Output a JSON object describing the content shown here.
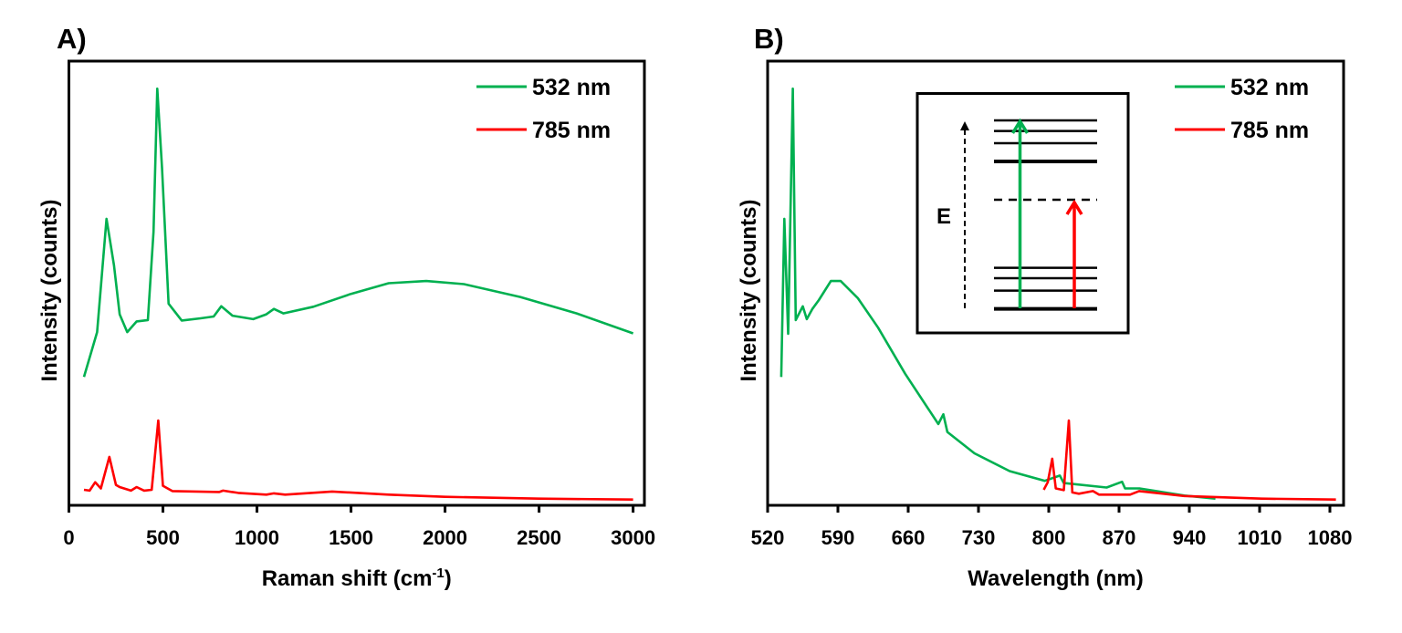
{
  "colors": {
    "green": "#00b050",
    "red": "#ff0000",
    "axis": "#000000"
  },
  "chart_data": [
    {
      "panel_label": "A)",
      "type": "line",
      "xlabel": "Raman shift (cm",
      "xlabel_sup": "-1",
      "xlabel_end": ")",
      "ylabel": "Intensity (counts)",
      "xlim": [
        0,
        3000
      ],
      "ylim": [
        0,
        100
      ],
      "xticks": [
        0,
        500,
        1000,
        1500,
        2000,
        2500,
        3000
      ],
      "grid": false,
      "legend": "top-right",
      "series": [
        {
          "name": "532 nm",
          "color": "#00b050",
          "x": [
            80,
            150,
            200,
            240,
            270,
            310,
            360,
            420,
            450,
            470,
            495,
            530,
            600,
            700,
            770,
            810,
            870,
            980,
            1050,
            1090,
            1140,
            1300,
            1500,
            1700,
            1900,
            2100,
            2400,
            2700,
            3000
          ],
          "y": [
            28.9,
            39,
            64.5,
            54,
            43,
            39,
            41.4,
            41.7,
            61.6,
            93.8,
            76,
            45.4,
            41.6,
            42.1,
            42.5,
            44.8,
            42.7,
            41.9,
            43,
            44.2,
            43.2,
            44.7,
            47.6,
            50,
            50.5,
            49.8,
            46.9,
            43.2,
            38.7
          ]
        },
        {
          "name": "785 nm",
          "color": "#ff0000",
          "x": [
            80,
            110,
            140,
            170,
            215,
            250,
            270,
            330,
            360,
            400,
            440,
            475,
            500,
            550,
            800,
            820,
            900,
            1050,
            1090,
            1150,
            1400,
            1700,
            2000,
            2500,
            3000
          ],
          "y": [
            3.5,
            3.3,
            5.2,
            3.8,
            10.9,
            4.6,
            4.1,
            3.3,
            4.1,
            3.3,
            3.5,
            19.1,
            4.4,
            3.2,
            3.0,
            3.3,
            2.8,
            2.4,
            2.7,
            2.4,
            3.1,
            2.4,
            1.9,
            1.5,
            1.3
          ]
        }
      ]
    },
    {
      "panel_label": "B)",
      "type": "line",
      "xlabel": "Wavelength (nm)",
      "ylabel": "Intensity (counts)",
      "xlim": [
        520,
        1090
      ],
      "ylim": [
        0,
        100
      ],
      "xticks": [
        520,
        590,
        660,
        730,
        800,
        870,
        940,
        1010,
        1080
      ],
      "grid": false,
      "legend": "top-right",
      "inset": {
        "energy_label": "E"
      },
      "series": [
        {
          "name": "532 nm",
          "color": "#00b050",
          "x": [
            533.5,
            536.6,
            540.5,
            545.1,
            548,
            555,
            559,
            564.5,
            571,
            583,
            592.7,
            610,
            630,
            657,
            690,
            695,
            699,
            726,
            761,
            796,
            811,
            815,
            857.6,
            873,
            876,
            890.4,
            935,
            966
          ],
          "y": [
            28.9,
            64.5,
            38.6,
            93.8,
            41.7,
            44.8,
            41.9,
            44.2,
            46.2,
            50.5,
            50.5,
            46.6,
            40,
            29.6,
            18.3,
            20.5,
            16.5,
            11.7,
            7.7,
            5.5,
            6.7,
            5,
            4,
            5.3,
            3.8,
            3.8,
            2.2,
            1.5
          ]
        },
        {
          "name": "785 nm",
          "color": "#ff0000",
          "x": [
            795,
            799,
            803.5,
            807,
            815,
            820,
            823.5,
            830,
            844,
            850,
            881,
            890,
            935,
            1012,
            1086
          ],
          "y": [
            3.5,
            5.2,
            10.5,
            3.8,
            3.4,
            19.1,
            2.9,
            2.6,
            3.2,
            2.4,
            2.4,
            3.2,
            2.1,
            1.5,
            1.3
          ]
        }
      ]
    }
  ]
}
